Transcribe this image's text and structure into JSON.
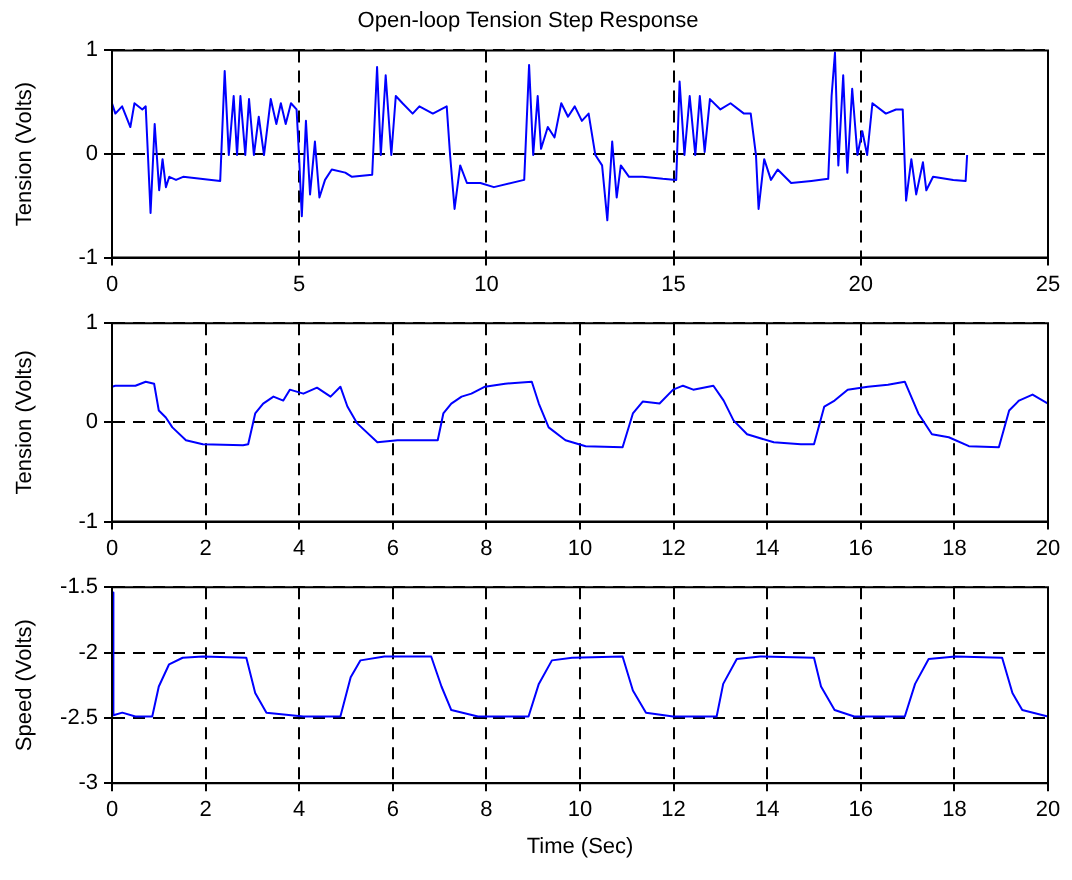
{
  "chart_data": [
    {
      "type": "line",
      "title": "Open-loop Tension Step Response",
      "ylabel": "Tension (Volts)",
      "xlim": [
        0,
        25
      ],
      "ylim": [
        -1,
        1
      ],
      "xticks": [
        0,
        5,
        10,
        15,
        20,
        25
      ],
      "yticks": [
        -1,
        0,
        1
      ],
      "grid": true,
      "line_style": "solid",
      "marker": "none",
      "x": [
        0,
        0.09,
        0.27,
        0.49,
        0.6,
        0.81,
        0.9,
        0.96,
        1.03,
        1.14,
        1.26,
        1.35,
        1.44,
        1.53,
        1.71,
        1.9,
        2.89,
        3.01,
        3.12,
        3.25,
        3.34,
        3.43,
        3.56,
        3.66,
        3.79,
        3.92,
        4.06,
        4.24,
        4.39,
        4.51,
        4.64,
        4.78,
        4.93,
        5.0,
        5.07,
        5.18,
        5.29,
        5.42,
        5.54,
        5.69,
        5.87,
        6.23,
        6.41,
        6.95,
        7.08,
        7.18,
        7.31,
        7.46,
        7.58,
        7.76,
        8.03,
        8.21,
        8.57,
        8.94,
        9.03,
        9.15,
        9.3,
        9.48,
        9.84,
        10.2,
        11.01,
        11.14,
        11.25,
        11.37,
        11.46,
        11.64,
        11.82,
        12.0,
        12.18,
        12.36,
        12.55,
        12.73,
        12.91,
        13.09,
        13.23,
        13.36,
        13.48,
        13.59,
        13.81,
        14.17,
        14.71,
        15.07,
        15.16,
        15.29,
        15.43,
        15.58,
        15.7,
        15.83,
        15.97,
        16.25,
        16.52,
        16.88,
        17.06,
        17.2,
        17.27,
        17.42,
        17.6,
        17.78,
        18.14,
        18.68,
        19.13,
        19.22,
        19.31,
        19.4,
        19.53,
        19.64,
        19.77,
        19.91,
        20.04,
        20.17,
        20.31,
        20.67,
        20.94,
        21.12,
        21.21,
        21.35,
        21.48,
        21.66,
        21.75,
        21.93,
        22.47,
        22.8,
        22.84
      ],
      "series": [
        {
          "color": "#0000ff",
          "values": [
            0.49,
            0.39,
            0.46,
            0.26,
            0.49,
            0.43,
            0.46,
            -0.01,
            -0.57,
            0.29,
            -0.35,
            -0.05,
            -0.32,
            -0.22,
            -0.25,
            -0.22,
            -0.26,
            0.8,
            -0.01,
            0.56,
            -0.01,
            0.56,
            -0.01,
            0.53,
            -0.01,
            0.36,
            -0.01,
            0.53,
            0.29,
            0.49,
            0.29,
            0.49,
            0.43,
            -0.05,
            -0.6,
            0.32,
            -0.39,
            0.12,
            -0.42,
            -0.25,
            -0.15,
            -0.18,
            -0.22,
            -0.2,
            0.84,
            -0.01,
            0.76,
            -0.01,
            0.56,
            0.49,
            0.39,
            0.46,
            0.39,
            0.46,
            -0.01,
            -0.53,
            -0.11,
            -0.28,
            -0.28,
            -0.32,
            -0.25,
            0.86,
            -0.01,
            0.56,
            0.05,
            0.26,
            0.16,
            0.49,
            0.36,
            0.46,
            0.32,
            0.39,
            -0.01,
            -0.11,
            -0.64,
            0.12,
            -0.42,
            -0.11,
            -0.22,
            -0.22,
            -0.24,
            -0.25,
            0.7,
            -0.01,
            0.56,
            -0.01,
            0.56,
            0.02,
            0.53,
            0.43,
            0.49,
            0.39,
            0.39,
            -0.01,
            -0.53,
            -0.05,
            -0.25,
            -0.15,
            -0.28,
            -0.26,
            -0.24,
            0.56,
            0.98,
            -0.11,
            0.76,
            -0.18,
            0.63,
            -0.01,
            0.22,
            -0.01,
            0.49,
            0.39,
            0.43,
            0.43,
            -0.45,
            -0.05,
            -0.39,
            -0.08,
            -0.35,
            -0.22,
            -0.25,
            -0.26,
            -0.01
          ]
        }
      ]
    },
    {
      "type": "line",
      "ylabel": "Tension (Volts)",
      "xlim": [
        0,
        20
      ],
      "ylim": [
        -1,
        1
      ],
      "xticks": [
        0,
        2,
        4,
        6,
        8,
        10,
        12,
        14,
        16,
        18,
        20
      ],
      "yticks": [
        -1,
        0,
        1
      ],
      "grid": true,
      "line_style": "solid",
      "marker": "none",
      "x": [
        0,
        0.07,
        0.5,
        0.72,
        0.9,
        1.0,
        1.15,
        1.29,
        1.58,
        1.94,
        2.8,
        2.91,
        3.06,
        3.23,
        3.45,
        3.66,
        3.8,
        4.09,
        4.38,
        4.67,
        4.88,
        5.03,
        5.24,
        5.67,
        6.1,
        6.96,
        7.08,
        7.25,
        7.47,
        7.68,
        7.97,
        8.4,
        8.97,
        9.12,
        9.33,
        9.69,
        10.12,
        10.91,
        11.13,
        11.34,
        11.7,
        11.99,
        12.2,
        12.42,
        12.85,
        13.07,
        13.28,
        13.57,
        14.14,
        14.72,
        15.0,
        15.22,
        15.44,
        15.72,
        16.15,
        16.58,
        16.94,
        17.23,
        17.52,
        17.88,
        18.31,
        18.95,
        19.17,
        19.38,
        19.67,
        20.0
      ],
      "series": [
        {
          "color": "#0000ff",
          "values": [
            0.36,
            0.37,
            0.37,
            0.41,
            0.39,
            0.12,
            0.05,
            -0.05,
            -0.18,
            -0.22,
            -0.23,
            -0.22,
            0.09,
            0.19,
            0.26,
            0.22,
            0.33,
            0.29,
            0.35,
            0.26,
            0.36,
            0.16,
            -0.01,
            -0.2,
            -0.18,
            -0.18,
            0.09,
            0.19,
            0.26,
            0.29,
            0.36,
            0.39,
            0.41,
            0.19,
            -0.05,
            -0.18,
            -0.24,
            -0.25,
            0.09,
            0.21,
            0.19,
            0.33,
            0.37,
            0.33,
            0.37,
            0.22,
            0.02,
            -0.12,
            -0.2,
            -0.22,
            -0.22,
            0.16,
            0.22,
            0.33,
            0.36,
            0.38,
            0.41,
            0.09,
            -0.12,
            -0.15,
            -0.24,
            -0.25,
            0.12,
            0.22,
            0.28,
            0.19
          ]
        }
      ]
    },
    {
      "type": "line",
      "xlabel": "Time (Sec)",
      "ylabel": "Speed (Volts)",
      "xlim": [
        0,
        20
      ],
      "ylim": [
        -3,
        -1.5
      ],
      "xticks": [
        0,
        2,
        4,
        6,
        8,
        10,
        12,
        14,
        16,
        18,
        20
      ],
      "yticks": [
        -3,
        -2.5,
        -2,
        -1.5
      ],
      "grid": true,
      "line_style": "solid",
      "marker": "none",
      "x": [
        0,
        0.03,
        0.22,
        0.5,
        0.86,
        1.0,
        1.22,
        1.51,
        1.94,
        2.87,
        3.06,
        3.3,
        4.09,
        4.88,
        5.1,
        5.31,
        5.82,
        6.82,
        7.04,
        7.25,
        7.82,
        8.9,
        9.12,
        9.4,
        9.83,
        10.91,
        11.13,
        11.41,
        11.99,
        12.92,
        13.06,
        13.35,
        13.85,
        15.0,
        15.15,
        15.44,
        15.86,
        16.94,
        17.16,
        17.45,
        18.02,
        19.02,
        19.24,
        19.45,
        20.0
      ],
      "series": [
        {
          "color": "#0000ff",
          "values": [
            -1.54,
            -2.48,
            -2.46,
            -2.49,
            -2.49,
            -2.26,
            -2.09,
            -2.04,
            -2.03,
            -2.04,
            -2.31,
            -2.46,
            -2.49,
            -2.49,
            -2.19,
            -2.06,
            -2.03,
            -2.03,
            -2.26,
            -2.44,
            -2.49,
            -2.49,
            -2.24,
            -2.06,
            -2.04,
            -2.03,
            -2.29,
            -2.46,
            -2.49,
            -2.49,
            -2.24,
            -2.05,
            -2.03,
            -2.04,
            -2.26,
            -2.44,
            -2.49,
            -2.49,
            -2.24,
            -2.05,
            -2.03,
            -2.04,
            -2.31,
            -2.44,
            -2.49
          ]
        }
      ]
    }
  ]
}
